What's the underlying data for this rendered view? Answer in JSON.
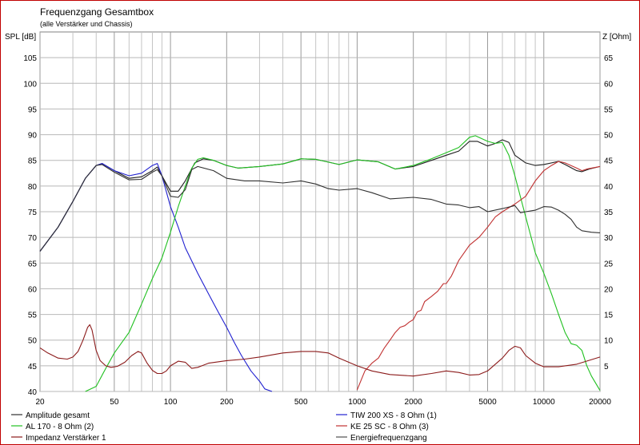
{
  "chart_data": {
    "type": "line",
    "title": "Frequenzgang Gesamtbox",
    "subtitle": "(alle Verstärker und Chassis)",
    "ylabel_left": "SPL [dB]",
    "ylabel_right": "Z [Ohm]",
    "x_scale": "log",
    "xlim": [
      20,
      20000
    ],
    "ylim_left": [
      40,
      110
    ],
    "ylim_right": [
      0,
      70
    ],
    "x_ticks": [
      20,
      50,
      100,
      200,
      500,
      1000,
      2000,
      5000,
      10000,
      20000
    ],
    "x_tick_labels": [
      "20",
      "50",
      "100",
      "200",
      "500",
      "1000",
      "2000",
      "5000",
      "10000",
      "20000"
    ],
    "y_ticks_left": [
      40,
      45,
      50,
      55,
      60,
      65,
      70,
      75,
      80,
      85,
      90,
      95,
      100,
      105
    ],
    "y_ticks_right": [
      5,
      10,
      15,
      20,
      25,
      30,
      35,
      40,
      45,
      50,
      55,
      60,
      65
    ],
    "grid": true,
    "series": [
      {
        "name": "Amplitude gesamt",
        "color": "#1e1e1e",
        "axis": "left",
        "points": [
          [
            20,
            67.3
          ],
          [
            25,
            72
          ],
          [
            30,
            77
          ],
          [
            35,
            81.5
          ],
          [
            40,
            84
          ],
          [
            43,
            84.4
          ],
          [
            50,
            83
          ],
          [
            60,
            81.5
          ],
          [
            70,
            81.8
          ],
          [
            80,
            83
          ],
          [
            85,
            83.7
          ],
          [
            90,
            82
          ],
          [
            100,
            79
          ],
          [
            110,
            79
          ],
          [
            120,
            81
          ],
          [
            135,
            84.5
          ],
          [
            150,
            85.3
          ],
          [
            170,
            85
          ],
          [
            200,
            84
          ],
          [
            230,
            83.5
          ],
          [
            300,
            83.8
          ],
          [
            400,
            84.3
          ],
          [
            500,
            85.3
          ],
          [
            600,
            85.2
          ],
          [
            800,
            84.2
          ],
          [
            1000,
            85.1
          ],
          [
            1300,
            84.7
          ],
          [
            1600,
            83.3
          ],
          [
            2000,
            83.8
          ],
          [
            2500,
            85
          ],
          [
            3000,
            86
          ],
          [
            3500,
            86.8
          ],
          [
            4000,
            88.7
          ],
          [
            4400,
            88.7
          ],
          [
            5000,
            87.8
          ],
          [
            5500,
            88.3
          ],
          [
            6000,
            89
          ],
          [
            6500,
            88.5
          ],
          [
            7000,
            86
          ],
          [
            8000,
            84.5
          ],
          [
            9000,
            84
          ],
          [
            10000,
            84.2
          ],
          [
            12000,
            84.8
          ],
          [
            13000,
            84.2
          ],
          [
            15000,
            83
          ],
          [
            16000,
            82.8
          ],
          [
            17500,
            83.3
          ],
          [
            20000,
            83.8
          ]
        ]
      },
      {
        "name": "TIW 200 XS - 8 Ohm (1)",
        "color": "#2020d0",
        "axis": "left",
        "points": [
          [
            20,
            67.3
          ],
          [
            25,
            72
          ],
          [
            30,
            77
          ],
          [
            35,
            81.5
          ],
          [
            40,
            84
          ],
          [
            43,
            84.4
          ],
          [
            50,
            83
          ],
          [
            60,
            82
          ],
          [
            70,
            82.5
          ],
          [
            80,
            84
          ],
          [
            85,
            84.4
          ],
          [
            90,
            82
          ],
          [
            100,
            76
          ],
          [
            110,
            72
          ],
          [
            120,
            68
          ],
          [
            140,
            63
          ],
          [
            160,
            59
          ],
          [
            180,
            55.5
          ],
          [
            200,
            52.5
          ],
          [
            220,
            49.5
          ],
          [
            240,
            47
          ],
          [
            270,
            44
          ],
          [
            300,
            42
          ],
          [
            320,
            40.5
          ],
          [
            350,
            40
          ]
        ]
      },
      {
        "name": "AL 170 - 8 Ohm (2)",
        "color": "#20c020",
        "axis": "left",
        "points": [
          [
            35,
            40
          ],
          [
            40,
            41
          ],
          [
            45,
            44.5
          ],
          [
            50,
            47.5
          ],
          [
            60,
            51.5
          ],
          [
            70,
            57
          ],
          [
            80,
            62
          ],
          [
            90,
            66
          ],
          [
            100,
            71
          ],
          [
            110,
            76
          ],
          [
            120,
            80
          ],
          [
            130,
            83.5
          ],
          [
            140,
            85.2
          ],
          [
            150,
            85.5
          ],
          [
            170,
            85
          ],
          [
            200,
            84
          ],
          [
            230,
            83.5
          ],
          [
            300,
            83.8
          ],
          [
            400,
            84.3
          ],
          [
            500,
            85.3
          ],
          [
            600,
            85.2
          ],
          [
            800,
            84.2
          ],
          [
            1000,
            85.1
          ],
          [
            1300,
            84.7
          ],
          [
            1600,
            83.3
          ],
          [
            2000,
            84
          ],
          [
            2500,
            85.3
          ],
          [
            3000,
            86.5
          ],
          [
            3500,
            87.5
          ],
          [
            4000,
            89.5
          ],
          [
            4300,
            89.8
          ],
          [
            5000,
            88.7
          ],
          [
            5500,
            88.3
          ],
          [
            6000,
            88.5
          ],
          [
            6500,
            86
          ],
          [
            7000,
            82
          ],
          [
            8000,
            74
          ],
          [
            9000,
            67
          ],
          [
            10000,
            63
          ],
          [
            11000,
            59
          ],
          [
            12000,
            55
          ],
          [
            13000,
            51.5
          ],
          [
            14000,
            49.3
          ],
          [
            15000,
            49
          ],
          [
            16000,
            48
          ],
          [
            17000,
            45
          ],
          [
            18000,
            43
          ],
          [
            20000,
            40.2
          ]
        ]
      },
      {
        "name": "KE 25 SC - 8 Ohm (3)",
        "color": "#c03030",
        "axis": "left",
        "points": [
          [
            1000,
            40.3
          ],
          [
            1100,
            44
          ],
          [
            1200,
            45.5
          ],
          [
            1300,
            46.5
          ],
          [
            1400,
            48.5
          ],
          [
            1500,
            50
          ],
          [
            1600,
            51.5
          ],
          [
            1700,
            52.5
          ],
          [
            1800,
            52.8
          ],
          [
            1900,
            53.5
          ],
          [
            2000,
            54
          ],
          [
            2100,
            55.5
          ],
          [
            2200,
            55.8
          ],
          [
            2300,
            57.5
          ],
          [
            2500,
            58.5
          ],
          [
            2700,
            59.5
          ],
          [
            2900,
            61
          ],
          [
            3000,
            61
          ],
          [
            3200,
            62.5
          ],
          [
            3500,
            65.5
          ],
          [
            4000,
            68.5
          ],
          [
            4500,
            70
          ],
          [
            5000,
            72
          ],
          [
            5500,
            74
          ],
          [
            6000,
            75
          ],
          [
            7000,
            76.5
          ],
          [
            8000,
            78
          ],
          [
            9000,
            81
          ],
          [
            10000,
            83
          ],
          [
            11000,
            84
          ],
          [
            12000,
            84.8
          ],
          [
            13000,
            84.5
          ],
          [
            15000,
            83.5
          ],
          [
            16000,
            83
          ],
          [
            17000,
            83.3
          ],
          [
            18000,
            83.5
          ],
          [
            20000,
            83.8
          ]
        ]
      },
      {
        "name": "Impedanz Verstärker 1",
        "color": "#8b1a1a",
        "axis": "right",
        "points": [
          [
            20,
            8.5
          ],
          [
            22,
            7.5
          ],
          [
            25,
            6.5
          ],
          [
            28,
            6.3
          ],
          [
            30,
            6.7
          ],
          [
            32,
            7.8
          ],
          [
            34,
            10
          ],
          [
            36,
            12.5
          ],
          [
            37,
            13
          ],
          [
            38,
            12
          ],
          [
            40,
            8
          ],
          [
            42,
            6
          ],
          [
            45,
            5
          ],
          [
            48,
            4.7
          ],
          [
            52,
            4.9
          ],
          [
            57,
            5.7
          ],
          [
            62,
            7
          ],
          [
            67,
            7.8
          ],
          [
            70,
            7.5
          ],
          [
            75,
            5.5
          ],
          [
            80,
            4.1
          ],
          [
            85,
            3.5
          ],
          [
            90,
            3.5
          ],
          [
            95,
            4
          ],
          [
            100,
            5
          ],
          [
            110,
            5.9
          ],
          [
            120,
            5.7
          ],
          [
            130,
            4.5
          ],
          [
            140,
            4.7
          ],
          [
            160,
            5.5
          ],
          [
            200,
            6
          ],
          [
            250,
            6.3
          ],
          [
            300,
            6.7
          ],
          [
            400,
            7.5
          ],
          [
            500,
            7.8
          ],
          [
            600,
            7.8
          ],
          [
            700,
            7.5
          ],
          [
            800,
            6.5
          ],
          [
            1000,
            5
          ],
          [
            1200,
            4
          ],
          [
            1500,
            3.3
          ],
          [
            2000,
            3
          ],
          [
            2500,
            3.5
          ],
          [
            3000,
            4
          ],
          [
            3500,
            3.7
          ],
          [
            4000,
            3.2
          ],
          [
            4500,
            3.3
          ],
          [
            5000,
            4
          ],
          [
            6000,
            6.5
          ],
          [
            6500,
            8
          ],
          [
            7000,
            8.8
          ],
          [
            7500,
            8.5
          ],
          [
            8000,
            7
          ],
          [
            9000,
            5.5
          ],
          [
            10000,
            4.8
          ],
          [
            12000,
            4.8
          ],
          [
            15000,
            5.3
          ],
          [
            20000,
            6.7
          ]
        ]
      },
      {
        "name": "Energiefrequenzgang",
        "color": "#303030",
        "axis": "left",
        "points": [
          [
            20,
            67.3
          ],
          [
            25,
            72
          ],
          [
            30,
            77
          ],
          [
            35,
            81.5
          ],
          [
            40,
            84
          ],
          [
            43,
            84.2
          ],
          [
            50,
            82.7
          ],
          [
            60,
            81.2
          ],
          [
            70,
            81.3
          ],
          [
            80,
            82.7
          ],
          [
            85,
            83.2
          ],
          [
            90,
            82
          ],
          [
            100,
            78
          ],
          [
            110,
            77.8
          ],
          [
            120,
            79.3
          ],
          [
            130,
            83.2
          ],
          [
            140,
            83.8
          ],
          [
            170,
            83
          ],
          [
            200,
            81.5
          ],
          [
            250,
            81
          ],
          [
            300,
            81
          ],
          [
            400,
            80.6
          ],
          [
            500,
            81
          ],
          [
            600,
            80.4
          ],
          [
            700,
            79.5
          ],
          [
            800,
            79.2
          ],
          [
            1000,
            79.5
          ],
          [
            1200,
            78.7
          ],
          [
            1500,
            77.5
          ],
          [
            2000,
            77.8
          ],
          [
            2500,
            77.4
          ],
          [
            3000,
            76.5
          ],
          [
            3500,
            76.3
          ],
          [
            4000,
            75.8
          ],
          [
            4500,
            76
          ],
          [
            5000,
            75
          ],
          [
            6000,
            75.6
          ],
          [
            7000,
            76.2
          ],
          [
            7500,
            74.8
          ],
          [
            8000,
            75
          ],
          [
            9000,
            75.3
          ],
          [
            10000,
            76
          ],
          [
            11000,
            75.9
          ],
          [
            12000,
            75.3
          ],
          [
            13000,
            74.5
          ],
          [
            14000,
            73.5
          ],
          [
            15000,
            72
          ],
          [
            16000,
            71.3
          ],
          [
            18000,
            71
          ],
          [
            20000,
            70.9
          ]
        ]
      }
    ],
    "legend": {
      "placement": "bottom",
      "entries": [
        {
          "label": "Amplitude gesamt",
          "color": "#303030"
        },
        {
          "label": "TIW 200 XS - 8 Ohm (1)",
          "color": "#2020d0"
        },
        {
          "label": "AL 170 - 8 Ohm (2)",
          "color": "#20c020"
        },
        {
          "label": "KE 25 SC - 8 Ohm (3)",
          "color": "#c03030"
        },
        {
          "label": "Impedanz Verstärker 1",
          "color": "#8b1a1a"
        },
        {
          "label": "Energiefrequenzgang",
          "color": "#505050"
        }
      ]
    }
  }
}
